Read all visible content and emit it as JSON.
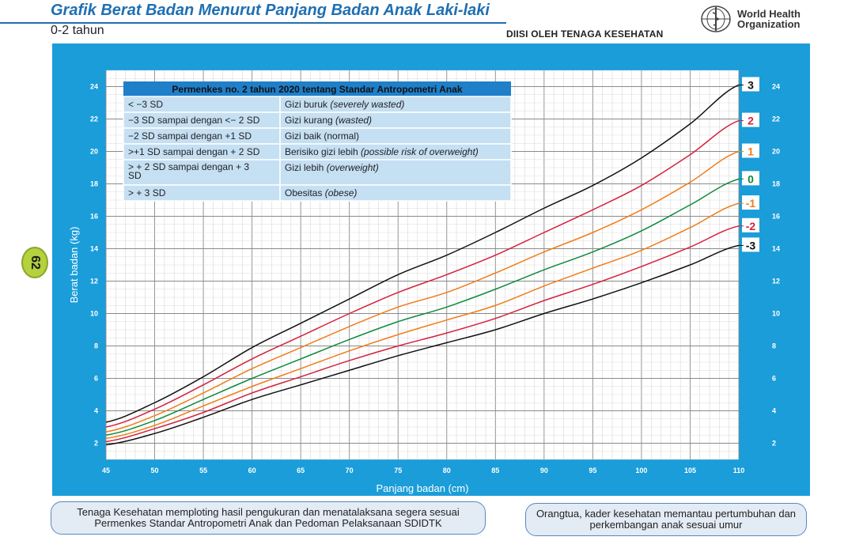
{
  "header": {
    "title": "Grafik Berat Badan Menurut Panjang Badan Anak Laki-laki",
    "subtitle": "0-2 tahun",
    "filled_by": "DIISI OLEH TENAGA KESEHATAN",
    "who_line1": "World Health",
    "who_line2": "Organization",
    "page_number": "62"
  },
  "legend_table": {
    "title": "Permenkes no. 2 tahun 2020 tentang Standar Antropometri Anak",
    "rows": [
      {
        "range": "< −3 SD",
        "status": "Gizi buruk",
        "english": "(severely wasted)"
      },
      {
        "range": "−3 SD sampai dengan <− 2 SD",
        "status": "Gizi kurang",
        "english": "(wasted)"
      },
      {
        "range": "−2 SD sampai dengan +1 SD",
        "status": "Gizi baik (normal)",
        "english": ""
      },
      {
        "range": ">+1 SD sampai dengan + 2 SD",
        "status": "Berisiko gizi lebih",
        "english": "(possible risk of overweight)"
      },
      {
        "range": "> + 2 SD sampai dengan + 3 SD",
        "status": "Gizi lebih",
        "english": "(overweight)"
      },
      {
        "range": "> + 3 SD",
        "status": "Obesitas",
        "english": "(obese)"
      }
    ]
  },
  "footer": {
    "left_note": "Tenaga Kesehatan memploting hasil pengukuran dan menatalaksana segera sesuai Permenkes Standar Antropometri Anak dan Pedoman Pelaksanaan SDIDTK",
    "right_note": "Orangtua, kader kesehatan memantau pertumbuhan dan perkembangan anak sesuai umur"
  },
  "colors": {
    "brand_blue": "#1f6fb2",
    "panel_blue": "#1a9dd9",
    "table_header": "#1f7fc9",
    "table_row": "#c5dff3",
    "sd3": "#111111",
    "sd2": "#d4213d",
    "sd1": "#f07d1a",
    "sd0": "#0e8a3e"
  },
  "chart_data": {
    "type": "line",
    "xlabel": "Panjang badan (cm)",
    "ylabel": "Berat badan (kg)",
    "xlim": [
      45,
      110
    ],
    "ylim": [
      1,
      25
    ],
    "x_ticks": [
      45,
      50,
      55,
      60,
      65,
      70,
      75,
      80,
      85,
      90,
      95,
      100,
      105,
      110
    ],
    "y_ticks": [
      2,
      4,
      6,
      8,
      10,
      12,
      14,
      16,
      18,
      20,
      22,
      24
    ],
    "grid": true,
    "x": [
      45,
      50,
      55,
      60,
      65,
      70,
      75,
      80,
      85,
      90,
      95,
      100,
      105,
      110
    ],
    "series": [
      {
        "name": "3",
        "color": "#111111",
        "values": [
          3.3,
          4.5,
          6.1,
          7.9,
          9.4,
          10.9,
          12.4,
          13.6,
          15.0,
          16.5,
          17.9,
          19.6,
          21.7,
          24.1
        ]
      },
      {
        "name": "2",
        "color": "#d4213d",
        "values": [
          3.0,
          4.1,
          5.6,
          7.2,
          8.6,
          10.0,
          11.3,
          12.4,
          13.6,
          15.0,
          16.4,
          17.9,
          19.8,
          21.9
        ]
      },
      {
        "name": "1",
        "color": "#f07d1a",
        "values": [
          2.7,
          3.7,
          5.1,
          6.6,
          7.9,
          9.2,
          10.4,
          11.3,
          12.5,
          13.8,
          15.0,
          16.4,
          18.1,
          20.0
        ]
      },
      {
        "name": "0",
        "color": "#0e8a3e",
        "values": [
          2.5,
          3.4,
          4.7,
          6.0,
          7.2,
          8.4,
          9.5,
          10.4,
          11.5,
          12.7,
          13.8,
          15.1,
          16.7,
          18.3
        ]
      },
      {
        "name": "-1",
        "color": "#f07d1a",
        "values": [
          2.3,
          3.1,
          4.3,
          5.5,
          6.6,
          7.7,
          8.7,
          9.6,
          10.5,
          11.7,
          12.8,
          13.9,
          15.3,
          16.8
        ]
      },
      {
        "name": "-2",
        "color": "#d4213d",
        "values": [
          2.1,
          2.9,
          3.9,
          5.1,
          6.1,
          7.1,
          8.0,
          8.8,
          9.7,
          10.8,
          11.8,
          12.9,
          14.1,
          15.4
        ]
      },
      {
        "name": "-3",
        "color": "#111111",
        "values": [
          1.9,
          2.6,
          3.6,
          4.7,
          5.6,
          6.5,
          7.4,
          8.2,
          9.0,
          10.0,
          10.9,
          11.9,
          13.0,
          14.2
        ]
      }
    ]
  }
}
